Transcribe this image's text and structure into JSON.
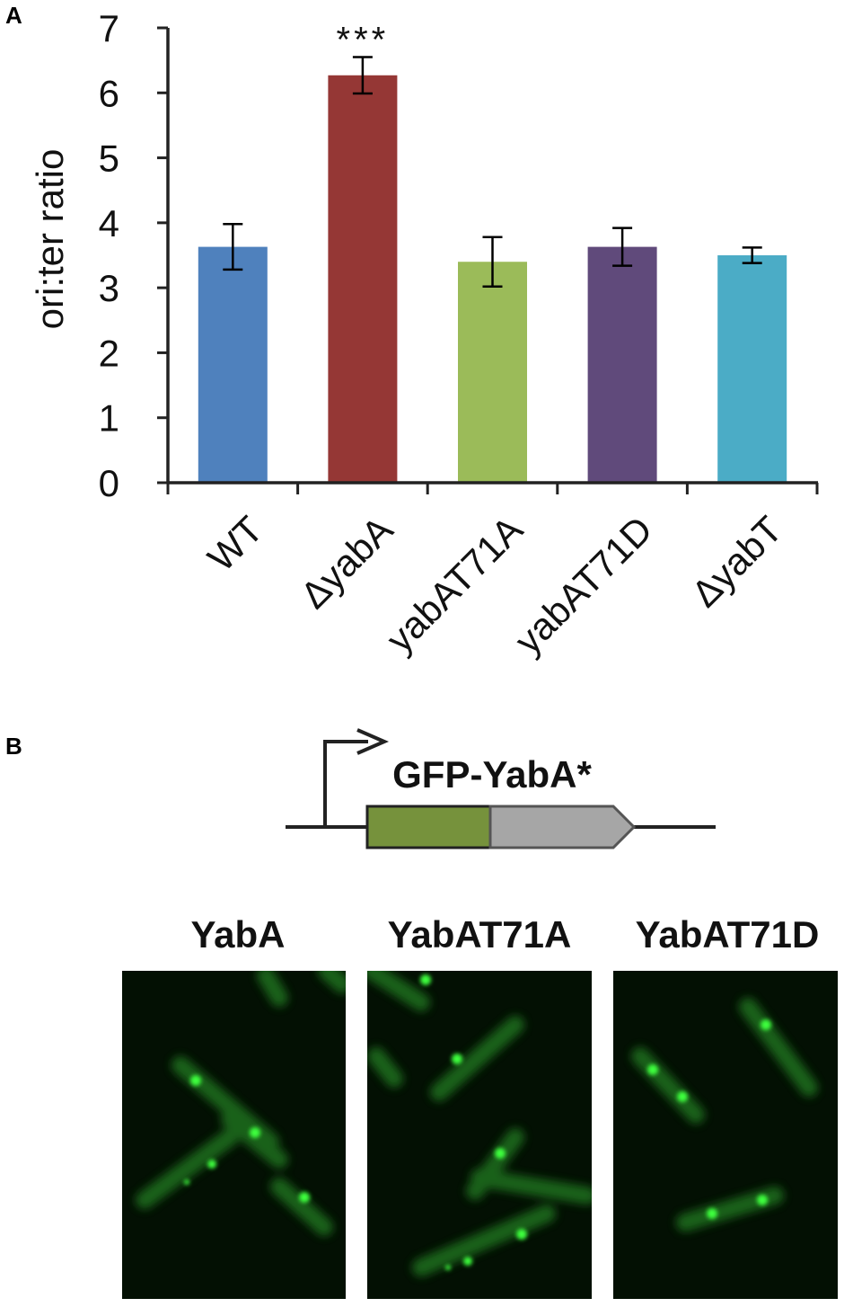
{
  "panels": {
    "a_label": "A",
    "b_label": "B"
  },
  "chart_data": {
    "type": "bar",
    "ylabel": "ori:ter ratio",
    "xlabel": "",
    "ylim": [
      0,
      7
    ],
    "yticks": [
      "0",
      "1",
      "2",
      "3",
      "4",
      "5",
      "6",
      "7"
    ],
    "categories": [
      "WT",
      "ΔyabA",
      "yabAT71A",
      "yabAT71D",
      "ΔyabT"
    ],
    "values": [
      3.63,
      6.27,
      3.4,
      3.63,
      3.5
    ],
    "errors": [
      0.35,
      0.28,
      0.38,
      0.29,
      0.12
    ],
    "colors": [
      "#4f81bd",
      "#953735",
      "#9bbb59",
      "#604a7b",
      "#4bacc6"
    ],
    "annotations": [
      {
        "category": "ΔyabA",
        "text": "***"
      }
    ],
    "grid": false,
    "legend": "none"
  },
  "construct": {
    "label": "GFP-YabA*",
    "gfp_color": "#76923c",
    "yaba_color": "#a6a6a6"
  },
  "micrographs": [
    {
      "title": "YabA"
    },
    {
      "title": "YabAT71A"
    },
    {
      "title": "YabAT71D"
    }
  ]
}
